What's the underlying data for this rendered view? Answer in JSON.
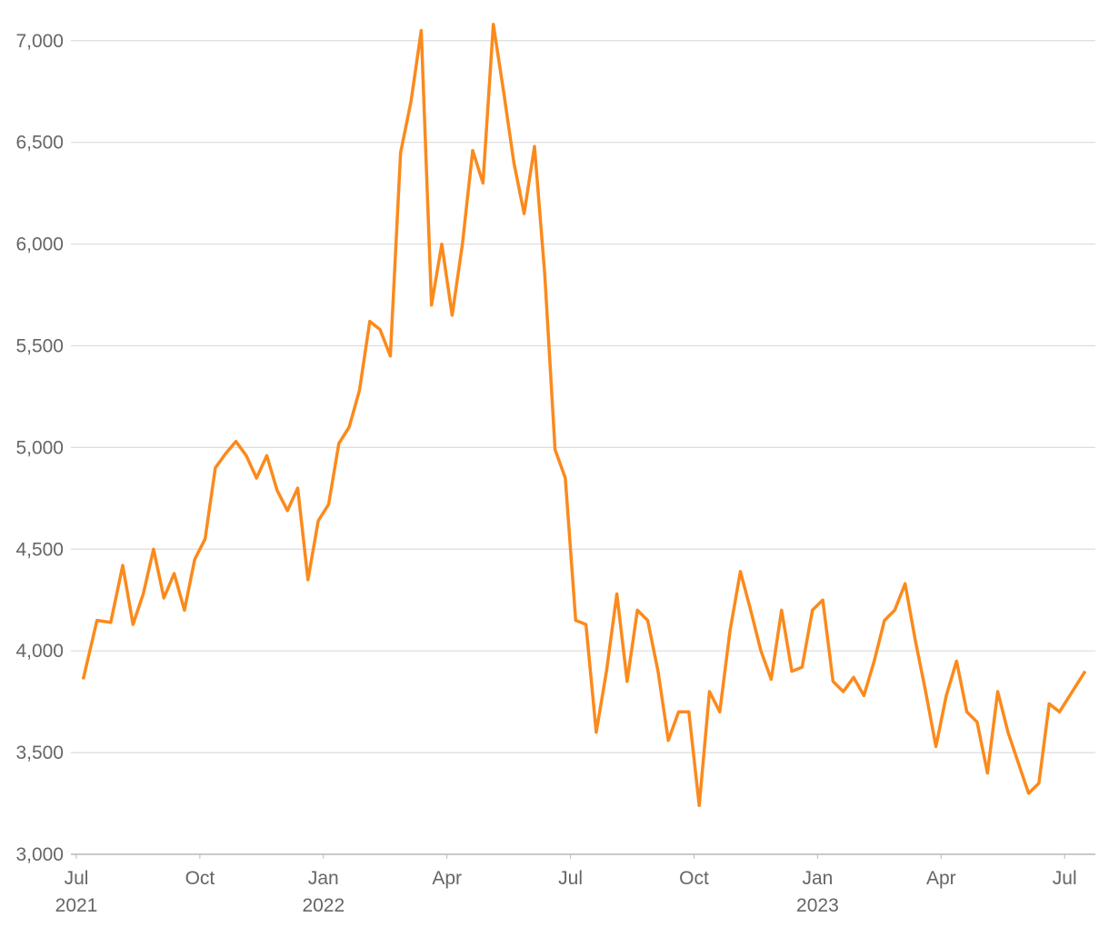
{
  "chart_data": {
    "type": "line",
    "x": [
      "2021-07",
      "2021-07",
      "2021-07",
      "2021-08",
      "2021-08",
      "2021-08",
      "2021-08",
      "2021-09",
      "2021-09",
      "2021-09",
      "2021-09",
      "2021-10",
      "2021-10",
      "2021-10",
      "2021-10",
      "2021-11",
      "2021-11",
      "2021-11",
      "2021-11",
      "2021-12",
      "2021-12",
      "2021-12",
      "2021-12",
      "2022-01",
      "2022-01",
      "2022-01",
      "2022-01",
      "2022-02",
      "2022-02",
      "2022-02",
      "2022-02",
      "2022-03",
      "2022-03",
      "2022-03",
      "2022-03",
      "2022-04",
      "2022-04",
      "2022-04",
      "2022-04",
      "2022-05",
      "2022-05",
      "2022-05",
      "2022-05",
      "2022-06",
      "2022-06",
      "2022-06",
      "2022-06",
      "2022-07",
      "2022-07",
      "2022-07",
      "2022-07",
      "2022-08",
      "2022-08",
      "2022-08",
      "2022-08",
      "2022-09",
      "2022-09",
      "2022-09",
      "2022-09",
      "2022-10",
      "2022-10",
      "2022-10",
      "2022-10",
      "2022-11",
      "2022-11",
      "2022-11",
      "2022-11",
      "2022-12",
      "2022-12",
      "2022-12",
      "2022-12",
      "2023-01",
      "2023-01",
      "2023-01",
      "2023-01",
      "2023-02",
      "2023-02",
      "2023-02",
      "2023-02",
      "2023-03",
      "2023-03",
      "2023-03",
      "2023-03",
      "2023-04",
      "2023-04",
      "2023-04",
      "2023-04",
      "2023-05",
      "2023-05",
      "2023-05",
      "2023-05",
      "2023-06",
      "2023-06",
      "2023-06",
      "2023-06",
      "2023-07"
    ],
    "series": [
      {
        "color": "#fb8a1c",
        "values": [
          3860,
          4150,
          4140,
          4420,
          4130,
          4280,
          4500,
          4260,
          4380,
          4200,
          4450,
          4550,
          4900,
          4970,
          5030,
          4960,
          4850,
          4960,
          4790,
          4690,
          4800,
          4350,
          4640,
          4720,
          5020,
          5100,
          5280,
          5620,
          5580,
          5450,
          6450,
          6700,
          7050,
          5700,
          6000,
          5650,
          6000,
          6460,
          6300,
          7080,
          6750,
          6400,
          6150,
          6480,
          5850,
          4990,
          4850,
          4150,
          4130,
          3600,
          3900,
          4280,
          3850,
          4200,
          4150,
          3900,
          3560,
          3700,
          3700,
          3240,
          3800,
          3700,
          4100,
          4390,
          4200,
          4000,
          3860,
          4200,
          3900,
          3920,
          4200,
          4250,
          3850,
          3800,
          3870,
          3780,
          3950,
          4150,
          4200,
          4330,
          4050,
          3800,
          3530,
          3780,
          3950,
          3700,
          3650,
          3400,
          3800,
          3600,
          3450,
          3300,
          3350,
          3740,
          3700,
          3900
        ]
      }
    ],
    "ylim": [
      3000,
      7200
    ],
    "yticks": [
      {
        "value": 3000,
        "label": "3,000"
      },
      {
        "value": 3500,
        "label": "3,500"
      },
      {
        "value": 4000,
        "label": "4,000"
      },
      {
        "value": 4500,
        "label": "4,500"
      },
      {
        "value": 5000,
        "label": "5,000"
      },
      {
        "value": 5500,
        "label": "5,500"
      },
      {
        "value": 6000,
        "label": "6,000"
      },
      {
        "value": 6500,
        "label": "6,500"
      },
      {
        "value": 7000,
        "label": "7,000"
      }
    ],
    "xticks": [
      {
        "value": "2021-07",
        "label": "Jul"
      },
      {
        "value": "2021-10",
        "label": "Oct"
      },
      {
        "value": "2022-01",
        "label": "Jan"
      },
      {
        "value": "2022-04",
        "label": "Apr"
      },
      {
        "value": "2022-07",
        "label": "Jul"
      },
      {
        "value": "2022-10",
        "label": "Oct"
      },
      {
        "value": "2023-01",
        "label": "Jan"
      },
      {
        "value": "2023-04",
        "label": "Apr"
      },
      {
        "value": "2023-07",
        "label": "Jul"
      }
    ],
    "x_year_labels": [
      {
        "value": "2021-07",
        "label": "2021"
      },
      {
        "value": "2022-01",
        "label": "2022"
      },
      {
        "value": "2023-01",
        "label": "2023"
      }
    ],
    "grid": true
  }
}
